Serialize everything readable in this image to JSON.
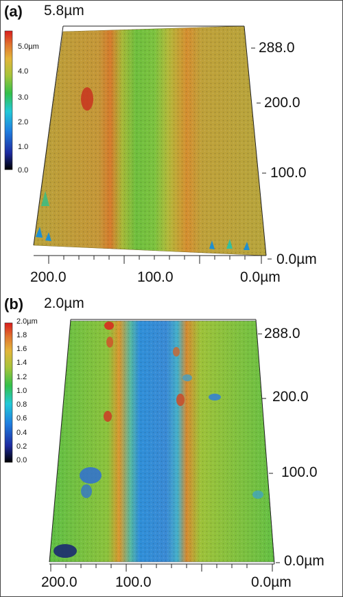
{
  "panels": [
    {
      "label": "(a)",
      "z_max": "5.8µm",
      "colorbar_ticks": [
        "5.0µm",
        "4.0",
        "3.0",
        "2.0",
        "1.0",
        "0.0"
      ],
      "y_ticks": [
        "288.0",
        "200.0",
        "100.0",
        "0.0µm"
      ],
      "x_ticks": [
        "200.0",
        "100.0",
        "0.0µm"
      ]
    },
    {
      "label": "(b)",
      "z_max": "2.0µm",
      "colorbar_ticks": [
        "2.0µm",
        "1.8",
        "1.6",
        "1.4",
        "1.2",
        "1.0",
        "0.8",
        "0.6",
        "0.4",
        "0.2",
        "0.0"
      ],
      "y_ticks": [
        "288.0",
        "200.0",
        "100.0",
        "0.0µm"
      ],
      "x_ticks": [
        "200.0",
        "100.0",
        "0.0µm"
      ]
    }
  ],
  "colors": {
    "colormap": [
      "#000000",
      "#1d2aa0",
      "#1f7fe0",
      "#22c9d8",
      "#33c04a",
      "#a7c43a",
      "#e3b53a",
      "#e0752e",
      "#d91c1c"
    ]
  }
}
